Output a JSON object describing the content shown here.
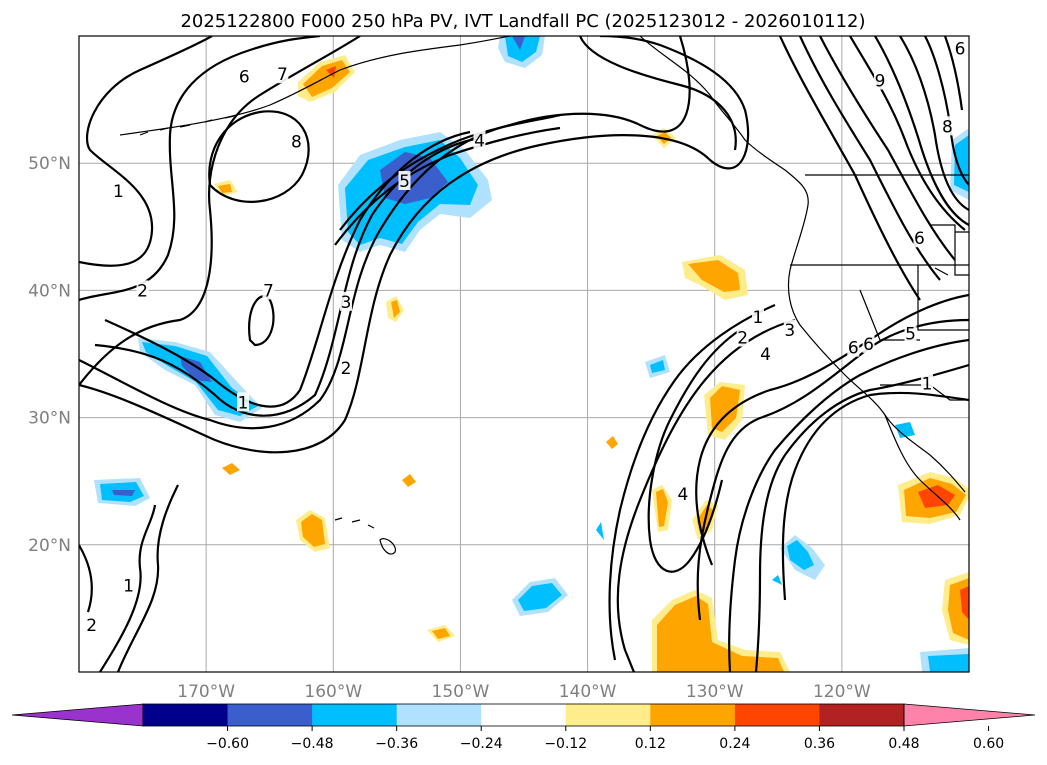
{
  "title": "2025122800 F000 250 hPa PV, IVT Landfall PC (2025123012 - 2026010112)",
  "axes": {
    "lon_range": [
      -180,
      -110
    ],
    "lat_range": [
      10,
      60
    ],
    "lon_ticks": [
      {
        "value": -170,
        "label": "170°W"
      },
      {
        "value": -160,
        "label": "160°W"
      },
      {
        "value": -150,
        "label": "150°W"
      },
      {
        "value": -140,
        "label": "140°W"
      },
      {
        "value": -130,
        "label": "130°W"
      },
      {
        "value": -120,
        "label": "120°W"
      }
    ],
    "lat_ticks": [
      {
        "value": 20,
        "label": "20°N"
      },
      {
        "value": 30,
        "label": "30°N"
      },
      {
        "value": 40,
        "label": "40°N"
      },
      {
        "value": 50,
        "label": "50°N"
      }
    ],
    "grid": true
  },
  "colorbar": {
    "extend": "both",
    "colors": [
      "#9a32cd",
      "#00008b",
      "#3a5fcd",
      "#00bfff",
      "#b0e2ff",
      "#ffffff",
      "#ffec8b",
      "#ffa500",
      "#ff4500",
      "#b22222",
      "#ff82ab"
    ],
    "ticks": [
      "−0.60",
      "−0.48",
      "−0.36",
      "−0.24",
      "−0.12",
      "0.12",
      "0.24",
      "0.36",
      "0.48",
      "0.60"
    ]
  },
  "contour_labels": [
    {
      "text": "1",
      "lon": -176.9,
      "lat": 47.8
    },
    {
      "text": "2",
      "lon": -175.0,
      "lat": 40.0
    },
    {
      "text": "6",
      "lon": -167.0,
      "lat": 56.8
    },
    {
      "text": "7",
      "lon": -164.0,
      "lat": 57.0
    },
    {
      "text": "8",
      "lon": -162.9,
      "lat": 51.7
    },
    {
      "text": "7",
      "lon": -165.1,
      "lat": 40.0
    },
    {
      "text": "5",
      "lon": -154.4,
      "lat": 48.6
    },
    {
      "text": "4",
      "lon": -148.5,
      "lat": 51.8
    },
    {
      "text": "3",
      "lon": -159.0,
      "lat": 39.1
    },
    {
      "text": "2",
      "lon": -159.0,
      "lat": 33.9
    },
    {
      "text": "1",
      "lon": -167.1,
      "lat": 31.2
    },
    {
      "text": "1",
      "lon": -176.1,
      "lat": 16.8
    },
    {
      "text": "2",
      "lon": -179.0,
      "lat": 13.7
    },
    {
      "text": "1",
      "lon": -126.6,
      "lat": 37.9
    },
    {
      "text": "2",
      "lon": -127.8,
      "lat": 36.3
    },
    {
      "text": "3",
      "lon": -124.1,
      "lat": 36.9
    },
    {
      "text": "4",
      "lon": -126.0,
      "lat": 35.0
    },
    {
      "text": "6",
      "lon": -117.9,
      "lat": 35.8
    },
    {
      "text": "6",
      "lon": -119.1,
      "lat": 35.5
    },
    {
      "text": "5",
      "lon": -114.6,
      "lat": 36.6
    },
    {
      "text": "1",
      "lon": -113.3,
      "lat": 32.7
    },
    {
      "text": "4",
      "lon": -132.5,
      "lat": 24.0
    },
    {
      "text": "6",
      "lon": -113.9,
      "lat": 44.1
    },
    {
      "text": "8",
      "lon": -111.7,
      "lat": 52.9
    },
    {
      "text": "6",
      "lon": -110.7,
      "lat": 59.0
    },
    {
      "text": "9",
      "lon": -117.0,
      "lat": 56.5
    }
  ]
}
